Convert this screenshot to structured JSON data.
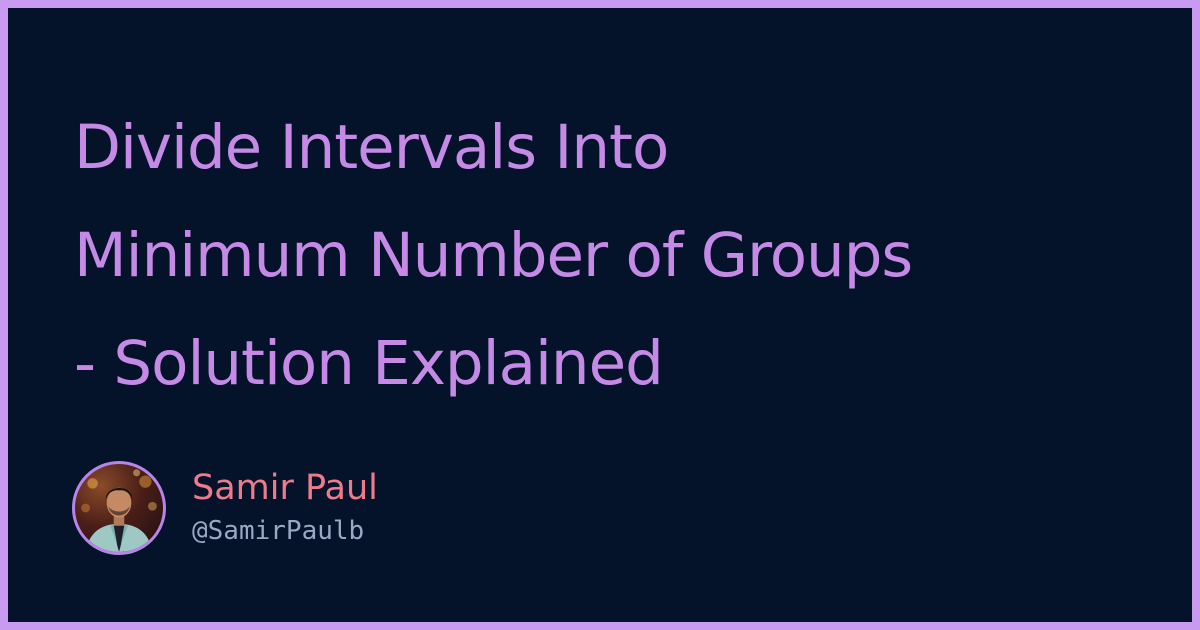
{
  "title": {
    "lines": [
      "Divide Intervals Into",
      "Minimum Number of Groups",
      "- Solution Explained"
    ]
  },
  "author": {
    "name": "Samir Paul",
    "handle": "@SamirPaulb"
  },
  "colors": {
    "border": "#c89af0",
    "background": "#04132a",
    "title": "#c48ae6",
    "name": "#ee7b8b",
    "handle": "#9aa8c4"
  },
  "icons": {
    "avatar": "author-photo"
  }
}
